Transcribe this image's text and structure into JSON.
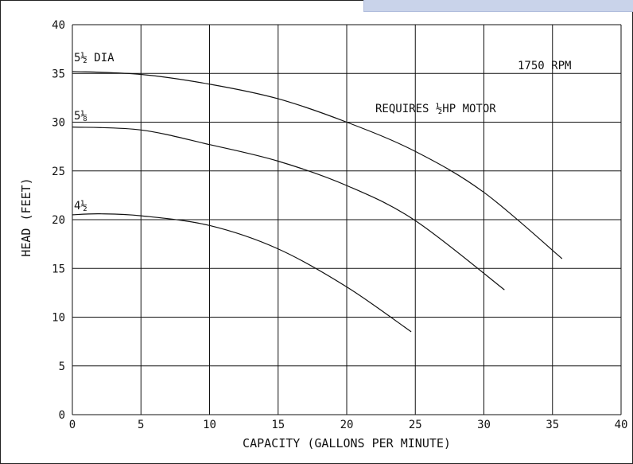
{
  "chart_data": {
    "type": "line",
    "title": "",
    "xlabel": "CAPACITY (GALLONS PER MINUTE)",
    "ylabel": "HEAD (FEET)",
    "xlim": [
      0,
      40
    ],
    "ylim": [
      0,
      40
    ],
    "x_ticks": [
      "0",
      "5",
      "10",
      "15",
      "20",
      "25",
      "30",
      "35",
      "40"
    ],
    "y_ticks": [
      "0",
      "5",
      "10",
      "15",
      "20",
      "25",
      "30",
      "35",
      "40"
    ],
    "grid": true,
    "annotations": {
      "rpm": "1750 RPM",
      "motor": "REQUIRES ½HP MOTOR"
    },
    "series": [
      {
        "name": "5½ DIA",
        "x": [
          0,
          5,
          10,
          15,
          20,
          25,
          30,
          35.7
        ],
        "y": [
          35.2,
          34.9,
          33.9,
          32.4,
          30.0,
          27.0,
          22.8,
          16.0
        ]
      },
      {
        "name": "5⅛",
        "x": [
          0,
          5,
          10,
          15,
          20,
          25,
          31.5
        ],
        "y": [
          29.5,
          29.2,
          27.7,
          26.0,
          23.5,
          19.9,
          12.8
        ]
      },
      {
        "name": "4½",
        "x": [
          0,
          2,
          5,
          10,
          15,
          20,
          24.7
        ],
        "y": [
          20.5,
          20.6,
          20.4,
          19.4,
          17.0,
          13.1,
          8.5
        ]
      }
    ]
  }
}
